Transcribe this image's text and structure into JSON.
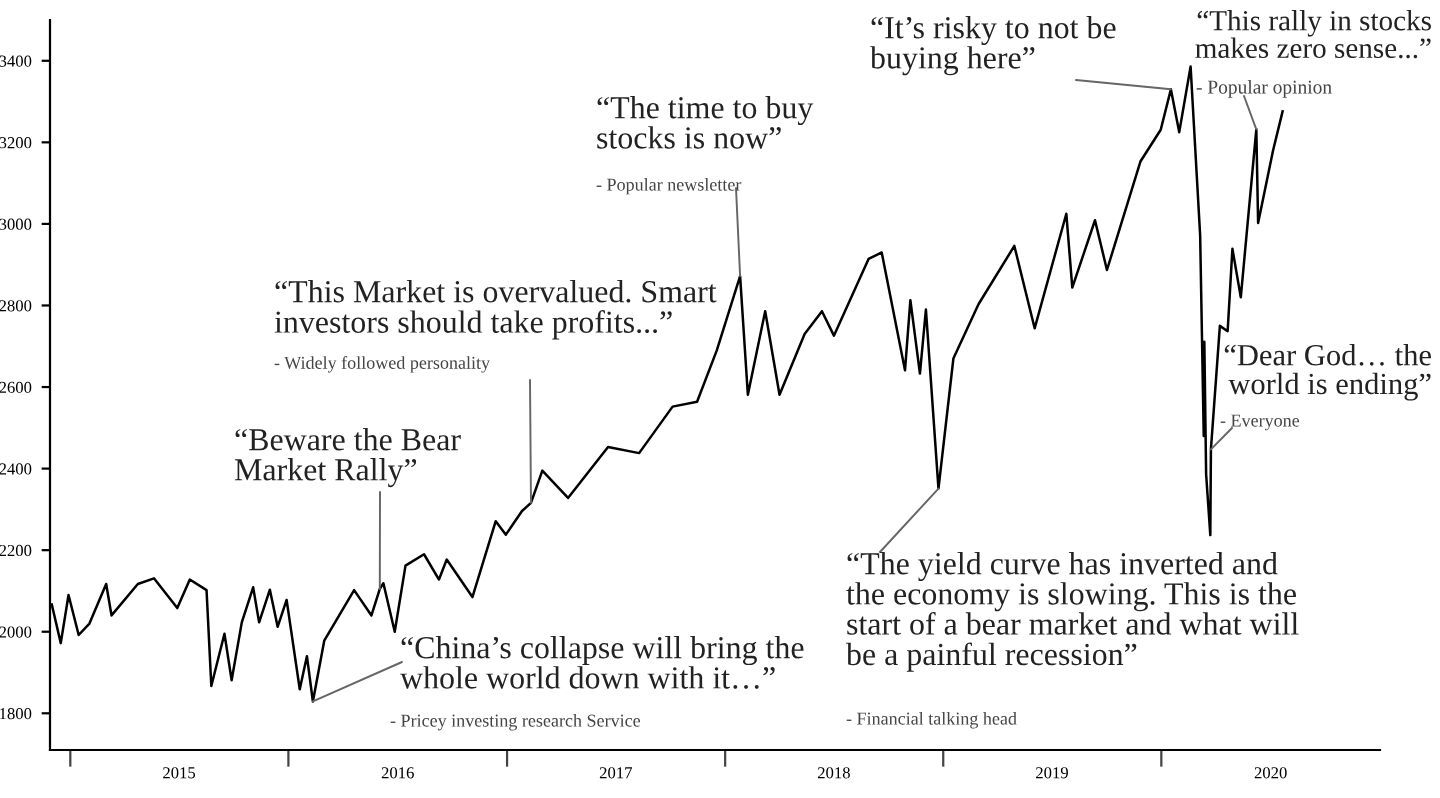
{
  "chart_data": {
    "type": "line",
    "x": [
      "2014-12-01",
      "2014-12-16",
      "2014-12-29",
      "2015-01-15",
      "2015-02-02",
      "2015-03-02",
      "2015-03-11",
      "2015-04-24",
      "2015-05-21",
      "2015-06-29",
      "2015-07-20",
      "2015-08-17",
      "2015-08-25",
      "2015-09-16",
      "2015-09-28",
      "2015-10-15",
      "2015-11-03",
      "2015-11-13",
      "2015-12-01",
      "2015-12-14",
      "2015-12-29",
      "2016-01-20",
      "2016-02-01",
      "2016-02-11",
      "2016-03-01",
      "2016-04-20",
      "2016-05-19",
      "2016-06-02",
      "2016-06-08",
      "2016-06-27",
      "2016-07-15",
      "2016-08-15",
      "2016-09-09",
      "2016-09-22",
      "2016-11-04",
      "2016-12-13",
      "2016-12-30",
      "2017-01-26",
      "2017-02-10",
      "2017-03-01",
      "2017-04-13",
      "2017-06-19",
      "2017-08-10",
      "2017-10-05",
      "2017-11-15",
      "2017-12-18",
      "2018-01-26",
      "2018-02-08",
      "2018-03-09",
      "2018-04-02",
      "2018-05-14",
      "2018-06-12",
      "2018-07-02",
      "2018-08-29",
      "2018-09-20",
      "2018-10-29",
      "2018-11-07",
      "2018-11-23",
      "2018-12-03",
      "2018-12-24",
      "2019-01-18",
      "2019-03-01",
      "2019-04-30",
      "2019-06-03",
      "2019-07-26",
      "2019-08-05",
      "2019-09-12",
      "2019-10-02",
      "2019-11-27",
      "2019-12-31",
      "2020-01-17",
      "2020-01-31",
      "2020-02-19",
      "2020-03-06",
      "2020-03-12",
      "2020-03-13",
      "2020-03-16",
      "2020-03-23",
      "2020-03-24",
      "2020-04-08",
      "2020-04-21",
      "2020-04-29",
      "2020-05-13",
      "2020-06-08",
      "2020-06-11",
      "2020-07-06",
      "2020-07-22"
    ],
    "series": [
      {
        "color": "#000000",
        "values": [
          2067,
          1972,
          2090,
          1992,
          2020,
          2117,
          2040,
          2117,
          2131,
          2058,
          2128,
          2102,
          1867,
          1995,
          1881,
          2023,
          2109,
          2023,
          2103,
          2012,
          2078,
          1859,
          1940,
          1829,
          1978,
          2102,
          2040,
          2105,
          2119,
          2000,
          2162,
          2190,
          2128,
          2177,
          2085,
          2271,
          2238,
          2296,
          2316,
          2395,
          2328,
          2453,
          2438,
          2552,
          2564,
          2690,
          2872,
          2581,
          2786,
          2581,
          2730,
          2786,
          2726,
          2914,
          2930,
          2641,
          2813,
          2633,
          2790,
          2351,
          2670,
          2803,
          2946,
          2744,
          3025,
          2844,
          3009,
          2887,
          3153,
          3231,
          3330,
          3225,
          3386,
          2972,
          2480,
          2711,
          2386,
          2237,
          2447,
          2750,
          2737,
          2939,
          2820,
          3232,
          3002,
          3180,
          3276
        ]
      }
    ],
    "xlim": [
      "2014-11-28",
      "2021-01-01"
    ],
    "xticks": [
      {
        "value": "2015-01-01",
        "label": null
      },
      {
        "value": "2015-07-02",
        "label": "2015"
      },
      {
        "value": "2016-01-01",
        "label": null
      },
      {
        "value": "2016-07-02",
        "label": "2016"
      },
      {
        "value": "2017-01-01",
        "label": null
      },
      {
        "value": "2017-07-02",
        "label": "2017"
      },
      {
        "value": "2018-01-01",
        "label": null
      },
      {
        "value": "2018-07-02",
        "label": "2018"
      },
      {
        "value": "2019-01-01",
        "label": null
      },
      {
        "value": "2019-07-02",
        "label": "2019"
      },
      {
        "value": "2020-01-01",
        "label": null
      },
      {
        "value": "2020-07-02",
        "label": "2020"
      }
    ],
    "ylim": [
      1710,
      3500
    ],
    "yticks": [
      1800,
      2000,
      2200,
      2400,
      2600,
      2800,
      3000,
      3200,
      3400
    ],
    "annotations": [
      {
        "text": "“Beware the Bear\nMarket Rally”",
        "x": "2016-06-02",
        "y": 2105
      },
      {
        "text": "“This Market is overvalued. Smart\ninvestors should take profits...”",
        "x": "2017-02-10",
        "y": 2316
      },
      "- Widely followed personality",
      {
        "text": "“The time to buy\nstocks is now”",
        "x": "2018-01-26",
        "y": 2872
      },
      "- Popular newsletter",
      {
        "text": "“It’s risky to not be\nbuying here”",
        "x": "2020-01-17",
        "y": 3330
      },
      {
        "text": "“This rally in stocks\nmakes zero sense...”",
        "x": "2020-06-08",
        "y": 3232
      },
      "- Popular opinion",
      {
        "text": "“Dear God… the\nworld is ending”",
        "x": "2020-03-24",
        "y": 2447
      },
      "- Everyone",
      {
        "text": "“The yield curve has inverted and\nthe economy is slowing. This is the\nstart of a bear market and what will\nbe a painful recession”",
        "x": "2018-12-24",
        "y": 2351
      },
      "- Financial talking head",
      {
        "text": "“China’s collapse will bring the\nwhole world down with it…”",
        "x": "2016-02-11",
        "y": 1829
      },
      "- Pricey investing research Service"
    ]
  }
}
